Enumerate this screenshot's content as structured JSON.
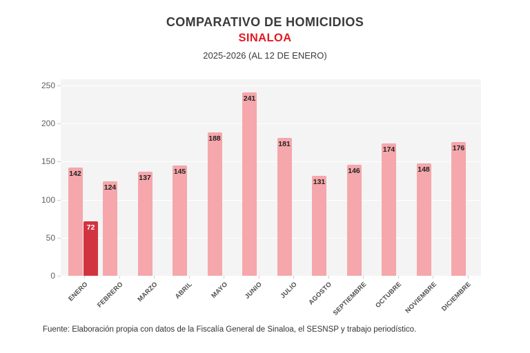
{
  "header": {
    "title": "COMPARATIVO DE HOMICIDIOS",
    "subtitle": "SINALOA",
    "period": "2025-2026 (AL 12 DE ENERO)"
  },
  "footer": {
    "source": "Fuente: Elaboración propia con datos de la Fiscalía General de Sinaloa, el SESNSP y trabajo periodístico."
  },
  "colors": {
    "title_text": "#3a3a3a",
    "subtitle_red": "#e01b24",
    "bar_pink": "#f5a7ab",
    "bar_red": "#d13440",
    "plot_background": "#f4f4f4",
    "gridline": "#ffffff",
    "axis_tick_label": "#5f5f5f",
    "month_label": "#4d4d4d",
    "value_label": "#222222",
    "value_label_on_red": "#ffffff"
  },
  "chart_data": {
    "type": "bar",
    "title": "COMPARATIVO DE HOMICIDIOS",
    "subtitle": "SINALOA",
    "period_note": "2025-2026 (AL 12 DE ENERO)",
    "xlabel": "",
    "ylabel": "",
    "categories": [
      "ENERO",
      "FEBRERO",
      "MARZO",
      "ABRIL",
      "MAYO",
      "JUNIO",
      "JULIO",
      "AGOSTO",
      "SEPTIEMBRE",
      "OCTUBRE",
      "NOVIEMBRE",
      "DICIEMBRE"
    ],
    "series": [
      {
        "name": "2025",
        "color_key": "bar_pink",
        "label_color_key": "value_label",
        "values": [
          142,
          124,
          137,
          145,
          188,
          241,
          181,
          131,
          146,
          174,
          148,
          176
        ]
      },
      {
        "name": "2026",
        "color_key": "bar_red",
        "label_color_key": "value_label_on_red",
        "values": [
          72,
          null,
          null,
          null,
          null,
          null,
          null,
          null,
          null,
          null,
          null,
          null
        ]
      }
    ],
    "ylim": [
      0,
      250
    ],
    "yticks": [
      0,
      50,
      100,
      150,
      200,
      250
    ],
    "grid": true,
    "legend_position": "none",
    "value_labels": true
  }
}
